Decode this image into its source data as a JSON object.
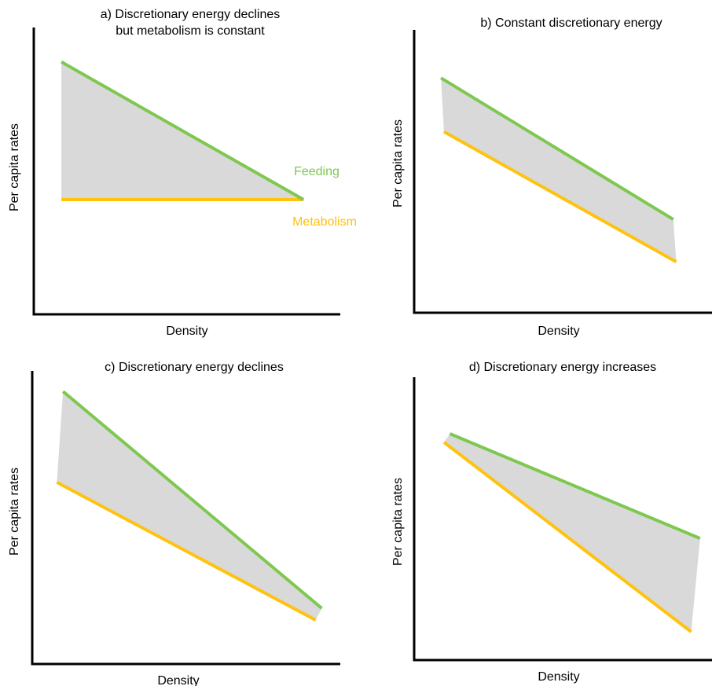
{
  "colors": {
    "feeding": "#7ec850",
    "metabolism": "#ffc20e",
    "fill": "#d9d9d9",
    "axis": "#000000"
  },
  "chart_data": [
    {
      "id": "a",
      "type": "line",
      "title_lines": [
        "a) Discretionary energy declines",
        "but metabolism is constant"
      ],
      "xlabel": "Density",
      "ylabel": "Per capita rates",
      "xlim": [
        0,
        100
      ],
      "ylim": [
        0,
        100
      ],
      "grid": false,
      "series": [
        {
          "key": "feeding",
          "name": "Feeding",
          "x": [
            9,
            88
          ],
          "y": [
            88,
            40
          ]
        },
        {
          "key": "metabolism",
          "name": "Metabolism",
          "x": [
            9,
            88
          ],
          "y": [
            40,
            40
          ]
        }
      ]
    },
    {
      "id": "b",
      "type": "line",
      "title_lines": [
        "b) Constant discretionary energy"
      ],
      "xlabel": "Density",
      "ylabel": "Per capita rates",
      "xlim": [
        0,
        100
      ],
      "ylim": [
        0,
        100
      ],
      "grid": false,
      "series": [
        {
          "key": "feeding",
          "x": [
            9,
            87
          ],
          "y": [
            83,
            33
          ]
        },
        {
          "key": "metabolism",
          "x": [
            10,
            88
          ],
          "y": [
            64,
            18
          ]
        }
      ]
    },
    {
      "id": "c",
      "type": "line",
      "title_lines": [
        "c) Discretionary energy declines"
      ],
      "xlabel": "Density",
      "ylabel": "Per capita rates",
      "xlim": [
        0,
        100
      ],
      "ylim": [
        0,
        100
      ],
      "grid": false,
      "series": [
        {
          "key": "feeding",
          "x": [
            10,
            94
          ],
          "y": [
            93,
            19
          ]
        },
        {
          "key": "metabolism",
          "x": [
            8,
            92
          ],
          "y": [
            62,
            15
          ]
        }
      ]
    },
    {
      "id": "d",
      "type": "line",
      "title_lines": [
        "d) Discretionary energy increases"
      ],
      "xlabel": "Density",
      "ylabel": "Per capita rates",
      "xlim": [
        0,
        100
      ],
      "ylim": [
        0,
        100
      ],
      "grid": false,
      "series": [
        {
          "key": "feeding",
          "x": [
            12,
            96
          ],
          "y": [
            80,
            43
          ]
        },
        {
          "key": "metabolism",
          "x": [
            10,
            93
          ],
          "y": [
            77,
            10
          ]
        }
      ]
    }
  ]
}
